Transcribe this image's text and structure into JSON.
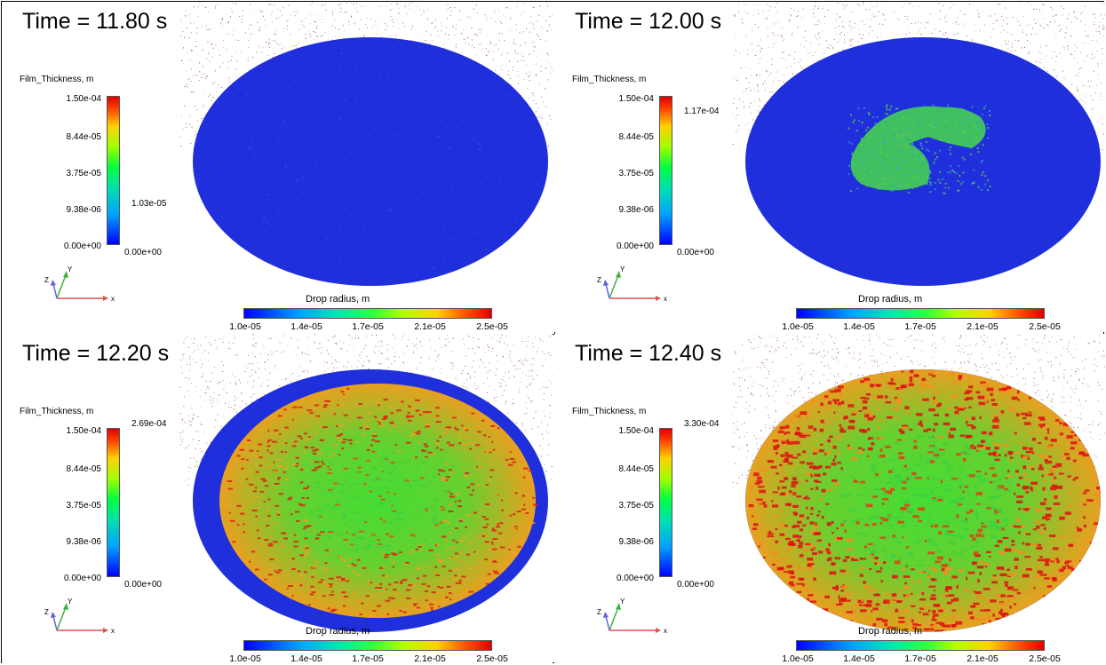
{
  "panels": [
    {
      "time_label": "Time = 11.80 s",
      "film_title": "Film_Thickness, m",
      "film_ticks": [
        "1.50e-04",
        "8.44e-05",
        "3.75e-05",
        "9.38e-06",
        "0.00e+00"
      ],
      "film_max": "1.03e-05",
      "film_min": "0.00e+00",
      "drop_title": "Drop radius, m",
      "drop_ticks": [
        "1.0e-05",
        "1.4e-05",
        "1.7e-05",
        "2.1e-05",
        "2.5e-05"
      ],
      "state": "empty"
    },
    {
      "time_label": "Time = 12.00 s",
      "film_title": "Film_Thickness, m",
      "film_ticks": [
        "1.50e-04",
        "8.44e-05",
        "3.75e-05",
        "9.38e-06",
        "0.00e+00"
      ],
      "film_max": "1.17e-04",
      "film_min": "0.00e+00",
      "drop_title": "Drop radius, m",
      "drop_ticks": [
        "1.0e-05",
        "1.4e-05",
        "1.7e-05",
        "2.1e-05",
        "2.5e-05"
      ],
      "state": "spot"
    },
    {
      "time_label": "Time = 12.20 s",
      "film_title": "Film_Thickness, m",
      "film_ticks": [
        "1.50e-04",
        "8.44e-05",
        "3.75e-05",
        "9.38e-06",
        "0.00e+00"
      ],
      "film_max": "2.69e-04",
      "film_min": "0.00e+00",
      "drop_title": "Drop radius, m",
      "drop_ticks": [
        "1.0e-05",
        "1.4e-05",
        "1.7e-05",
        "2.1e-05",
        "2.5e-05"
      ],
      "state": "partial"
    },
    {
      "time_label": "Time = 12.40 s",
      "film_title": "Film_Thickness, m",
      "film_ticks": [
        "1.50e-04",
        "8.44e-05",
        "3.75e-05",
        "9.38e-06",
        "0.00e+00"
      ],
      "film_max": "3.30e-04",
      "film_min": "0.00e+00",
      "drop_title": "Drop radius, m",
      "drop_ticks": [
        "1.0e-05",
        "1.4e-05",
        "1.7e-05",
        "2.1e-05",
        "2.5e-05"
      ],
      "state": "full"
    }
  ],
  "axis_labels": {
    "x": "x",
    "y": "Y",
    "z": "Z"
  },
  "colors": {
    "blue": "#1a2fe0",
    "green": "#30d030",
    "red": "#e02010",
    "spray": "#8b2a2a"
  }
}
